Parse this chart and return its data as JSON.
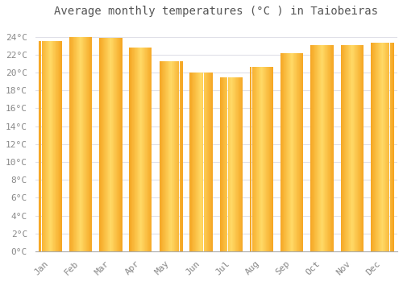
{
  "months": [
    "Jan",
    "Feb",
    "Mar",
    "Apr",
    "May",
    "Jun",
    "Jul",
    "Aug",
    "Sep",
    "Oct",
    "Nov",
    "Dec"
  ],
  "values": [
    23.5,
    24.0,
    23.9,
    22.8,
    21.3,
    20.0,
    19.5,
    20.6,
    22.2,
    23.1,
    23.1,
    23.3
  ],
  "bar_color_left": "#F5A623",
  "bar_color_center": "#FFD966",
  "background_color": "#FFFFFF",
  "grid_color": "#E0E0E8",
  "title": "Average monthly temperatures (°C ) in Taiobeiras",
  "yticks": [
    0,
    2,
    4,
    6,
    8,
    10,
    12,
    14,
    16,
    18,
    20,
    22,
    24
  ],
  "ylim": [
    0,
    25.5
  ],
  "title_fontsize": 10,
  "tick_fontsize": 8,
  "tick_color": "#888888",
  "title_color": "#555555",
  "bar_width": 0.75
}
